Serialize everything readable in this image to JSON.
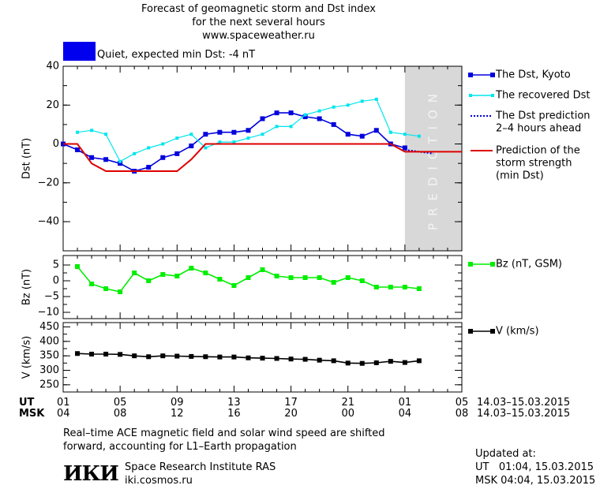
{
  "header": {
    "title_line1": "Forecast of geomagnetic storm and Dst index",
    "title_line2": "for the next several hours",
    "title_line3": "www.spaceweather.ru"
  },
  "status": {
    "text": "Quiet, expected min Dst: -4 nT",
    "color": "#0000ee"
  },
  "prediction_label": "PREDICTION",
  "chart_data": [
    {
      "type": "line",
      "ylabel": "Dst (nT)",
      "ylim": [
        -55,
        40
      ],
      "yticks": [
        "40",
        "20",
        "0",
        "−20",
        "−40"
      ],
      "ytick_values": [
        40,
        20,
        0,
        -20,
        -40
      ],
      "xlim": [
        0,
        28
      ],
      "prediction_region": [
        24,
        28
      ],
      "series": [
        {
          "name": "The Dst, Kyoto",
          "color": "#0000dd",
          "marker": "square",
          "x": [
            0,
            1,
            2,
            3,
            4,
            5,
            6,
            7,
            8,
            9,
            10,
            11,
            12,
            13,
            14,
            15,
            16,
            17,
            18,
            19,
            20,
            21,
            22,
            23,
            24
          ],
          "y": [
            0,
            -3,
            -7,
            -8,
            -10,
            -14,
            -12,
            -7,
            -5,
            -1,
            5,
            6,
            6,
            7,
            13,
            16,
            16,
            14,
            13,
            10,
            5,
            4,
            7,
            0,
            -2
          ]
        },
        {
          "name": "The recovered Dst",
          "color": "#00e5ee",
          "marker": "square-small",
          "x": [
            1,
            2,
            3,
            4,
            5,
            6,
            7,
            8,
            9,
            10,
            11,
            12,
            13,
            14,
            15,
            16,
            17,
            18,
            19,
            20,
            21,
            22,
            23,
            24,
            25
          ],
          "y": [
            6,
            7,
            5,
            -9,
            -5,
            -2,
            0,
            3,
            5,
            -2,
            1,
            1,
            3,
            5,
            9,
            9,
            15,
            17,
            19,
            20,
            22,
            23,
            6,
            5,
            4
          ]
        },
        {
          "name": "The Dst prediction 2–4 hours ahead",
          "color": "#0000dd",
          "style": "dotted",
          "x": [
            24,
            26
          ],
          "y": [
            -3,
            -5
          ]
        },
        {
          "name": "Prediction of the storm strength (min Dst)",
          "color": "#dd0000",
          "x": [
            0,
            1,
            2,
            3,
            8,
            9,
            10,
            23,
            24,
            28
          ],
          "y": [
            0,
            0,
            -10,
            -14,
            -14,
            -8,
            0,
            0,
            -4,
            -4
          ]
        }
      ],
      "legend": [
        {
          "line1": "The Dst, Kyoto",
          "color": "#0000dd",
          "kind": "line-marker"
        },
        {
          "line1": "The recovered Dst",
          "color": "#00e5ee",
          "kind": "line-marker-small"
        },
        {
          "line1": "The Dst prediction",
          "line2": "2–4 hours ahead",
          "color": "#0000dd",
          "kind": "dotted"
        },
        {
          "line1": "Prediction of the",
          "line2": "storm strength",
          "line3": "(min Dst)",
          "color": "#dd0000",
          "kind": "line"
        }
      ]
    },
    {
      "type": "line",
      "ylabel": "Bz (nT)",
      "ylim": [
        -12,
        8
      ],
      "yticks": [
        "5",
        "0",
        "−5",
        "−10"
      ],
      "ytick_values": [
        5,
        0,
        -5,
        -10
      ],
      "xlim": [
        0,
        28
      ],
      "series": [
        {
          "name": "Bz (nT, GSM)",
          "color": "#00ee00",
          "marker": "square",
          "x": [
            1,
            2,
            3,
            4,
            5,
            6,
            7,
            8,
            9,
            10,
            11,
            12,
            13,
            14,
            15,
            16,
            17,
            18,
            19,
            20,
            21,
            22,
            23,
            24,
            25
          ],
          "y": [
            4.5,
            -1,
            -2.5,
            -3.5,
            2.5,
            0,
            2,
            1.5,
            4,
            2.5,
            0.5,
            -1.5,
            1,
            3.5,
            1.5,
            1,
            1,
            1,
            -0.5,
            1,
            0,
            -2,
            -2,
            -2,
            -2.5
          ]
        }
      ],
      "legend": [
        {
          "line1": "Bz (nT, GSM)",
          "color": "#00ee00",
          "kind": "line-marker"
        }
      ]
    },
    {
      "type": "line",
      "ylabel": "V (km/s)",
      "ylim": [
        225,
        465
      ],
      "yticks": [
        "450",
        "400",
        "350",
        "300",
        "250"
      ],
      "ytick_values": [
        450,
        400,
        350,
        300,
        250
      ],
      "xlim": [
        0,
        28
      ],
      "series": [
        {
          "name": "V (km/s)",
          "color": "#000000",
          "marker": "square",
          "x": [
            1,
            2,
            3,
            4,
            5,
            6,
            7,
            8,
            9,
            10,
            11,
            12,
            13,
            14,
            15,
            16,
            17,
            18,
            19,
            20,
            21,
            22,
            23,
            24,
            25
          ],
          "y": [
            358,
            356,
            356,
            355,
            350,
            347,
            350,
            349,
            348,
            347,
            346,
            346,
            343,
            342,
            341,
            339,
            338,
            335,
            333,
            325,
            324,
            326,
            331,
            327,
            333
          ]
        }
      ],
      "legend": [
        {
          "line1": "V (km/s)",
          "color": "#000000",
          "kind": "line-marker"
        }
      ]
    }
  ],
  "time_axis": {
    "ut_label": "UT",
    "msk_label": "MSK",
    "ticks": [
      {
        "x": 0,
        "ut": "01",
        "msk": "04"
      },
      {
        "x": 4,
        "ut": "05",
        "msk": "08"
      },
      {
        "x": 8,
        "ut": "09",
        "msk": "12"
      },
      {
        "x": 12,
        "ut": "13",
        "msk": "16"
      },
      {
        "x": 16,
        "ut": "17",
        "msk": "20"
      },
      {
        "x": 20,
        "ut": "21",
        "msk": "00"
      },
      {
        "x": 24,
        "ut": "01",
        "msk": "04"
      },
      {
        "x": 28,
        "ut": "05",
        "msk": "08"
      }
    ],
    "ut_range": "14.03–15.03.2015",
    "msk_range": "14.03–15.03.2015"
  },
  "footer": {
    "note_line1": "Real–time ACE magnetic field and solar wind speed are shifted",
    "note_line2": "forward, accounting for L1–Earth propagation",
    "logo": "ИКИ",
    "institute": "Space Research Institute RAS",
    "website": "iki.cosmos.ru",
    "updated_label": "Updated at:",
    "updated_ut": "UT   01:04, 15.03.2015",
    "updated_msk": "MSK 04:04, 15.03.2015"
  }
}
